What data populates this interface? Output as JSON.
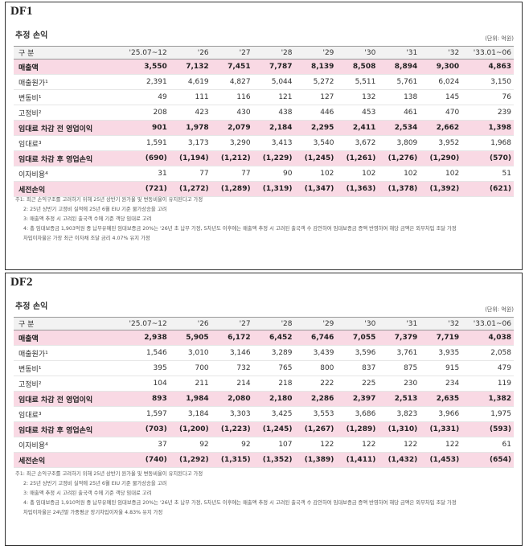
{
  "panels": [
    {
      "label": "DF1",
      "title": "추정 손익",
      "unit": "(단위: 억원)",
      "header": [
        "구 분",
        "'25.07~12",
        "'26",
        "'27",
        "'28",
        "'29",
        "'30",
        "'31",
        "'32",
        "'33.01~06"
      ],
      "rows": [
        {
          "label": "매출액",
          "highlight": true,
          "values": [
            "3,550",
            "7,132",
            "7,451",
            "7,787",
            "8,139",
            "8,508",
            "8,894",
            "9,300",
            "4,863"
          ]
        },
        {
          "label": "매출원가¹",
          "highlight": false,
          "values": [
            "2,391",
            "4,619",
            "4,827",
            "5,044",
            "5,272",
            "5,511",
            "5,761",
            "6,024",
            "3,150"
          ]
        },
        {
          "label": "변동비¹",
          "highlight": false,
          "values": [
            "49",
            "111",
            "116",
            "121",
            "127",
            "132",
            "138",
            "145",
            "76"
          ]
        },
        {
          "label": "고정비²",
          "highlight": false,
          "values": [
            "208",
            "423",
            "430",
            "438",
            "446",
            "453",
            "461",
            "470",
            "239"
          ]
        },
        {
          "label": "임대료 차감 전 영업이익",
          "highlight": true,
          "values": [
            "901",
            "1,978",
            "2,079",
            "2,184",
            "2,295",
            "2,411",
            "2,534",
            "2,662",
            "1,398"
          ]
        },
        {
          "label": "임대료³",
          "highlight": false,
          "values": [
            "1,591",
            "3,173",
            "3,290",
            "3,413",
            "3,540",
            "3,672",
            "3,809",
            "3,952",
            "1,968"
          ]
        },
        {
          "label": "임대료 차감 후 영업손익",
          "highlight": true,
          "values": [
            "(690)",
            "(1,194)",
            "(1,212)",
            "(1,229)",
            "(1,245)",
            "(1,261)",
            "(1,276)",
            "(1,290)",
            "(570)"
          ]
        },
        {
          "label": "이자비용⁴",
          "highlight": false,
          "values": [
            "31",
            "77",
            "77",
            "90",
            "102",
            "102",
            "102",
            "102",
            "51"
          ]
        },
        {
          "label": "세전손익",
          "highlight": true,
          "values": [
            "(721)",
            "(1,272)",
            "(1,289)",
            "(1,319)",
            "(1,347)",
            "(1,363)",
            "(1,378)",
            "(1,392)",
            "(621)"
          ]
        }
      ],
      "notes": [
        "주1: 최근 손익구조를 고려하기 위해 25년 상반기 원가율 및 변동비율이 유지된다고 가정",
        "2: 25년 상반기 고정비 실적에 25년 6월 EIU 기준 물가상승을 고려",
        "3: 매출액 추정 시 고려된 출국객 수에 기준 객당 임대료 고려",
        "4: 총 임대보증금 1,903억원 중 납부유예된 임대보증금 20%는 '26년 초 납부 가정, 5차년도 이후에는 매출액 추정 시 고려된 출국객 수 감안하여 임대보증금 증액 반영하여 해당 금액은 외부차입 조달 가정",
        "차입이자율은 가장 최근 이자채 조달 금리 4.07% 유지 가정"
      ]
    },
    {
      "label": "DF2",
      "title": "추정 손익",
      "unit": "(단위: 억원)",
      "header": [
        "구 분",
        "'25.07~12",
        "'26",
        "'27",
        "'28",
        "'29",
        "'30",
        "'31",
        "'32",
        "'33.01~06"
      ],
      "rows": [
        {
          "label": "매출액",
          "highlight": true,
          "values": [
            "2,938",
            "5,905",
            "6,172",
            "6,452",
            "6,746",
            "7,055",
            "7,379",
            "7,719",
            "4,038"
          ]
        },
        {
          "label": "매출원가¹",
          "highlight": false,
          "values": [
            "1,546",
            "3,010",
            "3,146",
            "3,289",
            "3,439",
            "3,596",
            "3,761",
            "3,935",
            "2,058"
          ]
        },
        {
          "label": "변동비¹",
          "highlight": false,
          "values": [
            "395",
            "700",
            "732",
            "765",
            "800",
            "837",
            "875",
            "915",
            "479"
          ]
        },
        {
          "label": "고정비²",
          "highlight": false,
          "values": [
            "104",
            "211",
            "214",
            "218",
            "222",
            "225",
            "230",
            "234",
            "119"
          ]
        },
        {
          "label": "임대료 차감 전 영업이익",
          "highlight": true,
          "values": [
            "893",
            "1,984",
            "2,080",
            "2,180",
            "2,286",
            "2,397",
            "2,513",
            "2,635",
            "1,382"
          ]
        },
        {
          "label": "임대료³",
          "highlight": false,
          "values": [
            "1,597",
            "3,184",
            "3,303",
            "3,425",
            "3,553",
            "3,686",
            "3,823",
            "3,966",
            "1,975"
          ]
        },
        {
          "label": "임대료 차감 후 영업손익",
          "highlight": true,
          "values": [
            "(703)",
            "(1,200)",
            "(1,223)",
            "(1,245)",
            "(1,267)",
            "(1,289)",
            "(1,310)",
            "(1,331)",
            "(593)"
          ]
        },
        {
          "label": "이자비용⁴",
          "highlight": false,
          "values": [
            "37",
            "92",
            "92",
            "107",
            "122",
            "122",
            "122",
            "122",
            "61"
          ]
        },
        {
          "label": "세전손익",
          "highlight": true,
          "values": [
            "(740)",
            "(1,292)",
            "(1,315)",
            "(1,352)",
            "(1,389)",
            "(1,411)",
            "(1,432)",
            "(1,453)",
            "(654)"
          ]
        }
      ],
      "notes": [
        "주1: 최근 손익구조를 고려하기 위해 25년 상반기 원가율 및 변동비율이 유지된다고 가정",
        "2: 25년 상반기 고정비 실적에 25년 6월 EIU 기준 물가상승을 고려",
        "3: 매출액 추정 시 고려된 출국객 수에 기준 객당 임대료 고려",
        "4: 총 임대보증금 1,910억원 중 납부유예된 임대보증금 20%는 '26년 초 납부 가정, 5차년도 이후에는 매출액 추정 시 고려된 출국객 수 감안하여 임대보증금 증액 반영하여 해당 금액은 외부차입 조달 가정",
        "차입이자율은 24년말 가중평균 장기차입이자율 4.83% 유지 가정"
      ]
    }
  ]
}
